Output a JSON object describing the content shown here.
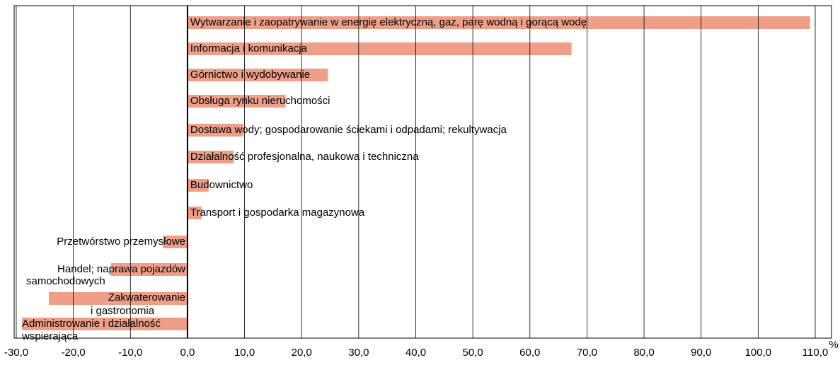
{
  "chart_data": {
    "type": "barh",
    "categories": [
      "Wytwarzanie i zaopatrywanie w energię elektryczną, gaz, parę wodną i gorącą wodę",
      "Informacja i komunikacja",
      "Górnictwo i wydobywanie",
      "Obsługa rynku nieruchomości",
      "Dostawa wody; gospodarowanie ściekami i odpadami; rekultywacja",
      "Działalność profesjonalna, naukowa i techniczna",
      "Budownictwo",
      "Transport i gospodarka magazynowa",
      "Przetwórstwo przemysłowe",
      [
        "Handel; naprawa pojazdów",
        "samochodowych"
      ],
      [
        "Zakwaterowanie",
        "i gastronomia"
      ],
      [
        "Administrowanie i działalność",
        "wspierająca"
      ]
    ],
    "values": [
      109.1,
      67.3,
      24.6,
      17.2,
      9.8,
      8.1,
      3.7,
      2.5,
      -4.3,
      -13.4,
      -24.3,
      -29.0
    ],
    "color": "#ef9f88",
    "xlim": [
      -30,
      110
    ],
    "xticks": [
      {
        "value": -30,
        "label": "-30,0"
      },
      {
        "value": -20,
        "label": "-20,0"
      },
      {
        "value": -10,
        "label": "-10,0"
      },
      {
        "value": 0,
        "label": "0,0"
      },
      {
        "value": 10,
        "label": "10,0"
      },
      {
        "value": 20,
        "label": "20,0"
      },
      {
        "value": 30,
        "label": "30,0"
      },
      {
        "value": 40,
        "label": "40,0"
      },
      {
        "value": 50,
        "label": "50,0"
      },
      {
        "value": 60,
        "label": "60,0"
      },
      {
        "value": 70,
        "label": "70,0"
      },
      {
        "value": 80,
        "label": "80,0"
      },
      {
        "value": 90,
        "label": "90,0"
      },
      {
        "value": 100,
        "label": "100,0"
      },
      {
        "value": 110,
        "label": "110,0"
      }
    ],
    "x_unit": "%",
    "grid": true
  }
}
